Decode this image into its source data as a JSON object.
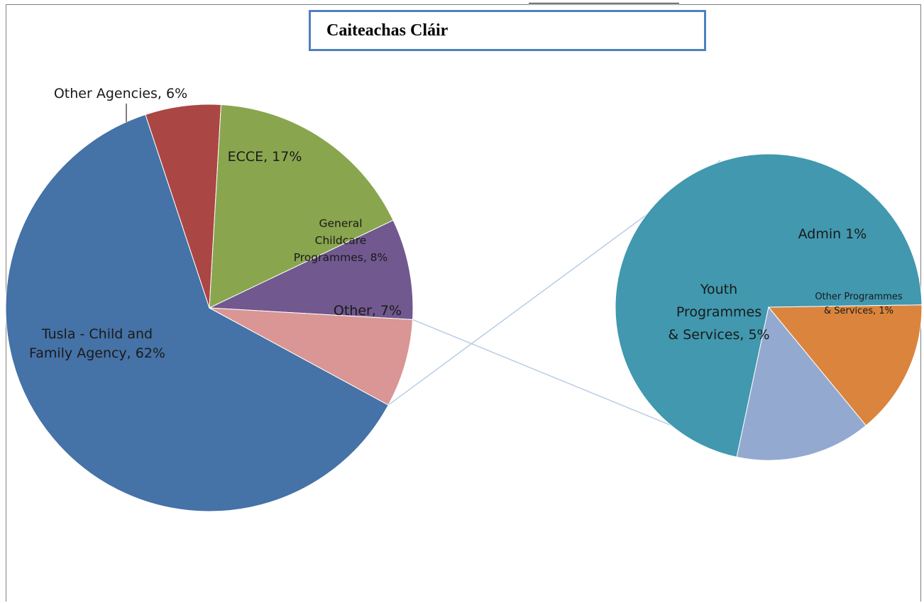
{
  "title": "Caiteachas Cláir",
  "chart_data": {
    "type": "pie",
    "title": "Caiteachas Cláir",
    "main_pie": {
      "slices": [
        {
          "label": "Tusla - Child and Family Agency",
          "value": 62,
          "display": [
            "Tusla - Child and",
            "Family Agency, 62%"
          ],
          "color": "#4572a7"
        },
        {
          "label": "Other Agencies",
          "value": 6,
          "display": [
            "Other Agencies, 6%"
          ],
          "color": "#aa4643"
        },
        {
          "label": "ECCE",
          "value": 17,
          "display": [
            "ECCE, 17%"
          ],
          "color": "#89a54e"
        },
        {
          "label": "General Childcare Programmes",
          "value": 8,
          "display": [
            "General",
            "Childcare",
            "Programmes, 8%"
          ],
          "color": "#71588f"
        },
        {
          "label": "Other",
          "value": 7,
          "display": [
            "Other, 7%"
          ],
          "color": "#d99694"
        }
      ]
    },
    "breakout_pie": {
      "source": "Other",
      "slices": [
        {
          "label": "Youth Programmes & Services",
          "value": 5,
          "display": [
            "Youth",
            "Programmes",
            "& Services, 5%"
          ],
          "color": "#4198af"
        },
        {
          "label": "Admin",
          "value": 1,
          "display": [
            "Admin 1%"
          ],
          "color": "#db843d"
        },
        {
          "label": "Other Programmes & Services",
          "value": 1,
          "display": [
            "Other Programmes",
            "& Services, 1%"
          ],
          "color": "#93a9cf"
        }
      ]
    }
  }
}
